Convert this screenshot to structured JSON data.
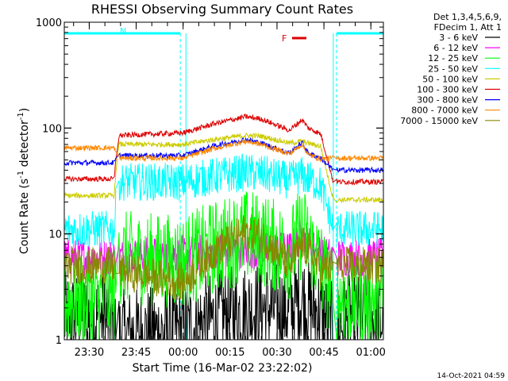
{
  "chart_data": {
    "type": "line",
    "title": "RHESSI Observing Summary Count Rates",
    "xlabel": "Start Time (16-Mar-02 23:22:02)",
    "ylabel_main": "Count Rate (s",
    "ylabel_sup1": "-1",
    "ylabel_mid": " detector",
    "ylabel_sup2": "-1",
    "ylabel_end": ")",
    "yscale": "log",
    "ylim": [
      1,
      1000
    ],
    "xlim_minutes": [
      -37.97,
      64
    ],
    "x_ticks": [
      "23:30",
      "23:45",
      "00:00",
      "00:15",
      "00:30",
      "00:45",
      "01:00"
    ],
    "y_ticks": [
      "1",
      "10",
      "100",
      "1000"
    ],
    "legend_header": [
      "Det 1,3,4,5,6,9,",
      "FDecim 1, Att 1"
    ],
    "annotations": {
      "night_marker": "N",
      "flare_marker": "F"
    },
    "timestamp": "14-Oct-2021 04:59",
    "segments": [
      {
        "from_minutes": -37.97,
        "to_minutes": -0.9,
        "level": 0.0
      },
      {
        "from_minutes": 0.9,
        "to_minutes": 48,
        "level": 1.0
      },
      {
        "from_minutes": 49,
        "to_minutes": 64,
        "level": 0.0
      }
    ],
    "series": [
      {
        "name": "3 - 6 keV",
        "color": "#000000",
        "times": [
          -38,
          -24,
          -22,
          -21,
          0,
          15,
          25,
          34,
          38,
          40,
          44,
          48,
          52,
          64
        ],
        "values": [
          1.6,
          1.6,
          1.4,
          1.1,
          1.2,
          1.8,
          2.0,
          1.9,
          2.5,
          2.0,
          1.8,
          1.2,
          1.5,
          1.5
        ]
      },
      {
        "name": "6 - 12 keV",
        "color": "#ff00ff",
        "times": [
          -38,
          -22,
          -21,
          0,
          15,
          25,
          34,
          38,
          40,
          44,
          48,
          64
        ],
        "values": [
          6.0,
          6.0,
          6.0,
          6.5,
          7.0,
          7.0,
          7.0,
          10.0,
          8.0,
          6.5,
          6.0,
          6.0
        ]
      },
      {
        "name": "12 - 25 keV",
        "color": "#00ff00",
        "times": [
          -38,
          -22,
          -21,
          0,
          10,
          20,
          25,
          34,
          38,
          40,
          44,
          48,
          64
        ],
        "values": [
          2.4,
          2.4,
          6.0,
          5.5,
          7.5,
          9.5,
          9.0,
          6.5,
          10.5,
          8.5,
          5.0,
          2.4,
          2.4
        ]
      },
      {
        "name": "25 - 50 keV",
        "color": "#00ffff",
        "times": [
          -38,
          -22,
          -21,
          0,
          10,
          20,
          25,
          34,
          38,
          40,
          44,
          48,
          64
        ],
        "values": [
          11,
          11,
          31,
          31,
          35,
          38,
          37,
          32,
          36,
          33,
          29,
          11,
          11
        ]
      },
      {
        "name": "50 - 100 keV",
        "color": "#cccc00",
        "times": [
          -38,
          -22,
          -21,
          0,
          10,
          20,
          25,
          34,
          38,
          40,
          44,
          48,
          64
        ],
        "values": [
          23,
          23,
          70,
          70,
          78,
          85,
          84,
          72,
          75,
          72,
          67,
          21,
          21
        ]
      },
      {
        "name": "100 - 300 keV",
        "color": "#dd0000",
        "times": [
          -38,
          -22,
          -21,
          0,
          10,
          20,
          25,
          34,
          38,
          40,
          44,
          48,
          64
        ],
        "values": [
          33,
          33,
          85,
          90,
          110,
          128,
          122,
          95,
          120,
          100,
          88,
          31,
          31
        ]
      },
      {
        "name": "300 - 800 keV",
        "color": "#0000ff",
        "times": [
          -38,
          -22,
          -21,
          0,
          10,
          20,
          25,
          34,
          38,
          40,
          44,
          48,
          64
        ],
        "values": [
          47,
          47,
          55,
          55,
          68,
          78,
          72,
          58,
          73,
          58,
          52,
          40,
          40
        ]
      },
      {
        "name": "800 - 7000 keV",
        "color": "#ff8800",
        "times": [
          -38,
          -22,
          -21,
          0,
          10,
          20,
          25,
          34,
          38,
          40,
          44,
          48,
          64
        ],
        "values": [
          65,
          65,
          52,
          52,
          64,
          75,
          70,
          57,
          70,
          56,
          51,
          52,
          52
        ]
      },
      {
        "name": "7000 - 15000 keV",
        "color": "#888800",
        "times": [
          -38,
          -22,
          -21,
          0,
          10,
          20,
          25,
          34,
          38,
          40,
          44,
          48,
          64
        ],
        "values": [
          5.0,
          5.0,
          4.5,
          3.5,
          7.0,
          10.5,
          9.5,
          5.0,
          8.0,
          7.0,
          4.5,
          5.0,
          5.0
        ]
      }
    ]
  }
}
